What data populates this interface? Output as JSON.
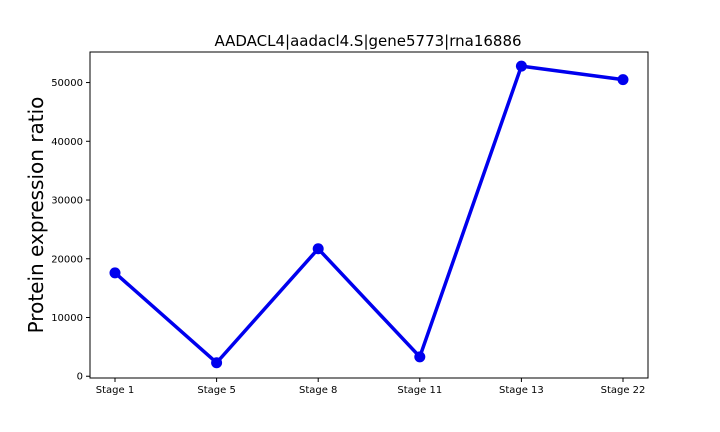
{
  "chart_data": {
    "type": "line",
    "title": "AADACL4|aadacl4.S|gene5773|rna16886",
    "xlabel": "",
    "ylabel": "Protein expression ratio",
    "categories": [
      "Stage 1",
      "Stage 5",
      "Stage 8",
      "Stage 11",
      "Stage 13",
      "Stage 22"
    ],
    "series": [
      {
        "values": [
          17600,
          2300,
          21700,
          3300,
          52800,
          50500
        ]
      }
    ],
    "yticks": [
      0,
      10000,
      20000,
      30000,
      40000,
      50000
    ],
    "ytick_labels": [
      "0",
      "10000",
      "20000",
      "30000",
      "40000",
      "50000"
    ],
    "ylim": [
      -300,
      55200
    ],
    "grid": false,
    "color": "#0000ee"
  }
}
